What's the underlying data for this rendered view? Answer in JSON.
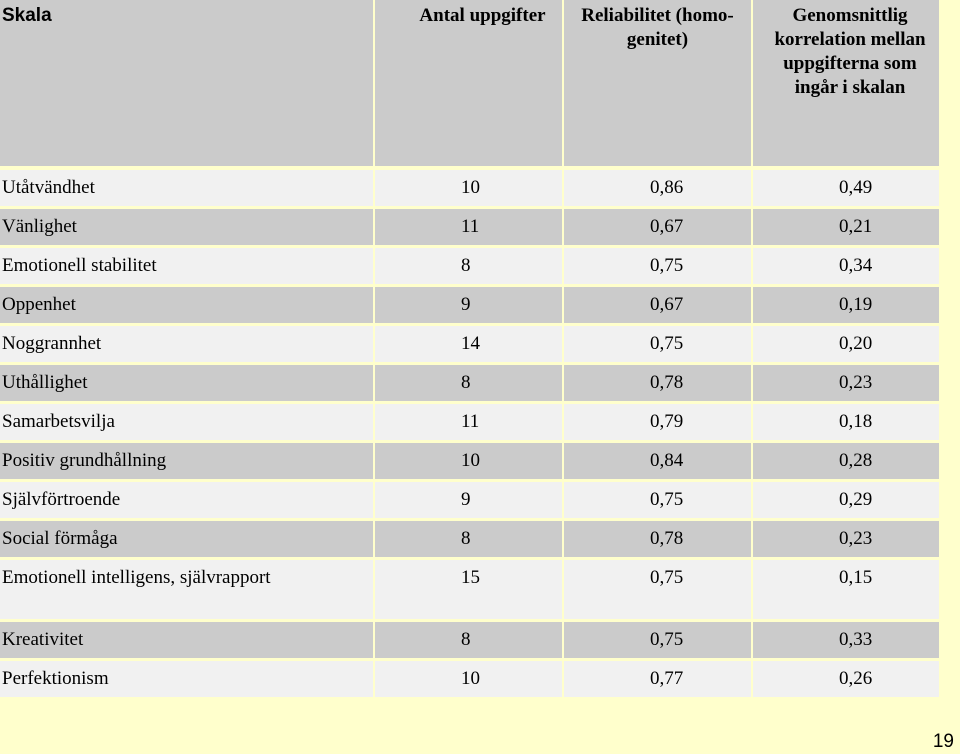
{
  "headers": {
    "scale": "Skala",
    "count": "Antal uppgifter",
    "reliability": "Reliabilitet (homo-genitet)",
    "correlation": "Genomsnittlig korrelation mellan uppgifterna som ingår i skalan"
  },
  "rows": [
    {
      "name": "Utåtvändhet",
      "count": "10",
      "reliability": "0,86",
      "correlation": "0,49"
    },
    {
      "name": "Vänlighet",
      "count": "11",
      "reliability": "0,67",
      "correlation": "0,21"
    },
    {
      "name": "Emotionell stabilitet",
      "count": "8",
      "reliability": "0,75",
      "correlation": "0,34"
    },
    {
      "name": "Oppenhet",
      "count": "9",
      "reliability": "0,67",
      "correlation": "0,19"
    },
    {
      "name": "Noggrannhet",
      "count": "14",
      "reliability": "0,75",
      "correlation": "0,20"
    },
    {
      "name": "Uthållighet",
      "count": "8",
      "reliability": "0,78",
      "correlation": "0,23"
    },
    {
      "name": "Samarbetsvilja",
      "count": "11",
      "reliability": "0,79",
      "correlation": "0,18"
    },
    {
      "name": "Positiv grundhållning",
      "count": "10",
      "reliability": "0,84",
      "correlation": "0,28"
    },
    {
      "name": "Självförtroende",
      "count": "9",
      "reliability": "0,75",
      "correlation": "0,29"
    },
    {
      "name": "Social förmåga",
      "count": "8",
      "reliability": "0,78",
      "correlation": "0,23"
    },
    {
      "name": "Emotionell intelligens, självrapport",
      "count": "15",
      "reliability": "0,75",
      "correlation": "0,15"
    },
    {
      "name": "Kreativitet",
      "count": "8",
      "reliability": "0,75",
      "correlation": "0,33"
    },
    {
      "name": "Perfektionism",
      "count": "10",
      "reliability": "0,77",
      "correlation": "0,26"
    }
  ],
  "page_number": "19"
}
